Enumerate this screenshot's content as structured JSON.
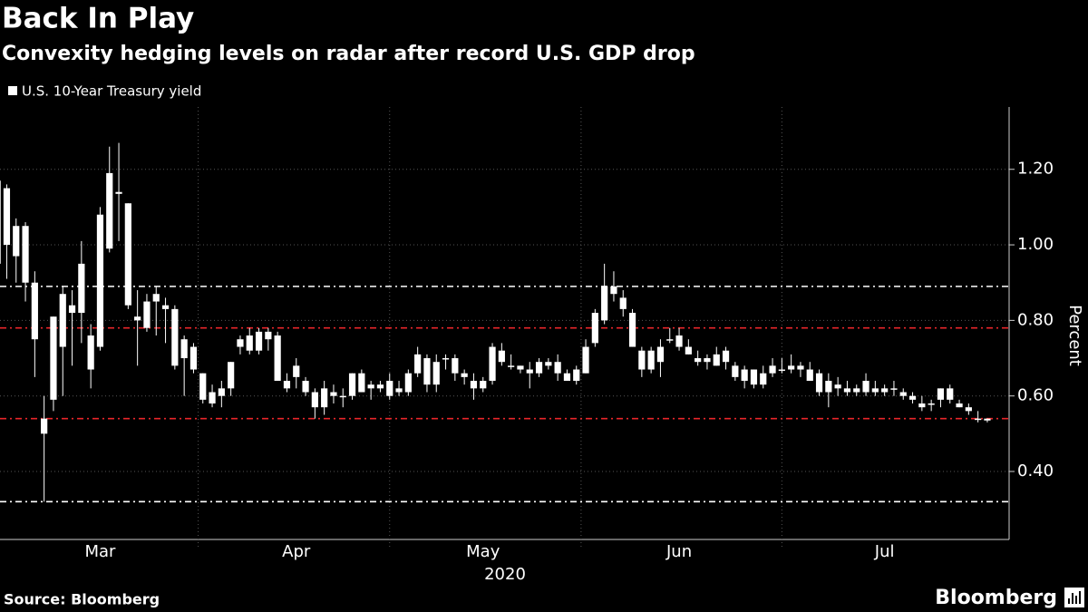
{
  "chart_data": {
    "type": "candlestick",
    "title": "Back In Play",
    "subtitle": "Convexity hedging levels on radar after record U.S. GDP drop",
    "ylabel": "Percent",
    "xlabel": "2020",
    "source": "Source: Bloomberg",
    "brand": "Bloomberg",
    "categories": [
      null,
      null,
      null,
      null,
      null,
      null,
      null,
      null,
      null,
      null,
      null,
      "Mar",
      null,
      null,
      null,
      null,
      null,
      null,
      null,
      null,
      null,
      null,
      null,
      null,
      null,
      null,
      null,
      null,
      null,
      null,
      null,
      null,
      "Apr",
      null,
      null,
      null,
      null,
      null,
      null,
      null,
      null,
      null,
      null,
      null,
      null,
      null,
      null,
      null,
      null,
      null,
      null,
      null,
      "May",
      null,
      null,
      null,
      null,
      null,
      null,
      null,
      null,
      null,
      null,
      null,
      null,
      null,
      null,
      null,
      null,
      null,
      null,
      null,
      null,
      "Jun",
      null,
      null,
      null,
      null,
      null,
      null,
      null,
      null,
      null,
      null,
      null,
      null,
      null,
      null,
      null,
      null,
      null,
      null,
      null,
      null,
      null,
      "Jul",
      null,
      null,
      null,
      null,
      null,
      null,
      null,
      null,
      null,
      null,
      null
    ],
    "series": [
      {
        "name": "U.S. 10-Year Treasury yield",
        "color": "#ffffff",
        "open": [
          1.17,
          1.15,
          1.05,
          1.05,
          0.9,
          0.5,
          0.59,
          0.73,
          0.82,
          0.82,
          0.67,
          0.73,
          0.99,
          1.14,
          1.11,
          0.81,
          0.78,
          0.85,
          0.84,
          0.83,
          0.7,
          0.67,
          0.66,
          0.61,
          0.62,
          0.62,
          0.73,
          0.76,
          0.72,
          0.77,
          0.76,
          0.64,
          0.68,
          0.64,
          0.61,
          0.57,
          0.61,
          0.6,
          0.6,
          0.66,
          0.62,
          0.63,
          0.64,
          0.62,
          0.61,
          0.66,
          0.7,
          0.63,
          0.7,
          0.7,
          0.66,
          0.64,
          0.62,
          0.64,
          0.72,
          0.68,
          0.68,
          0.67,
          0.66,
          0.69,
          0.69,
          0.66,
          0.64,
          0.66,
          0.74,
          0.8,
          0.89,
          0.86,
          0.82,
          0.72,
          0.67,
          0.69,
          0.75,
          0.76,
          0.73,
          0.7,
          0.69,
          0.71,
          0.72,
          0.68,
          0.64,
          0.67,
          0.63,
          0.66,
          0.67,
          0.67,
          0.68,
          0.67,
          0.66,
          0.64,
          0.62,
          0.62,
          0.62,
          0.61,
          0.62,
          0.62,
          0.62,
          0.61,
          0.6,
          0.58,
          0.58,
          0.59,
          0.62,
          0.58,
          0.57,
          0.54,
          0.54
        ],
        "high": [
          1.18,
          1.16,
          1.07,
          1.06,
          0.93,
          0.6,
          0.81,
          0.89,
          0.88,
          1.01,
          0.79,
          1.1,
          1.26,
          1.27,
          1.11,
          0.88,
          0.87,
          0.89,
          0.86,
          0.84,
          0.76,
          0.74,
          0.66,
          0.63,
          0.64,
          0.69,
          0.76,
          0.78,
          0.78,
          0.78,
          0.77,
          0.66,
          0.7,
          0.65,
          0.62,
          0.64,
          0.63,
          0.62,
          0.66,
          0.67,
          0.64,
          0.64,
          0.66,
          0.64,
          0.67,
          0.73,
          0.71,
          0.71,
          0.71,
          0.71,
          0.67,
          0.66,
          0.65,
          0.74,
          0.74,
          0.71,
          0.68,
          0.69,
          0.7,
          0.7,
          0.71,
          0.67,
          0.68,
          0.75,
          0.83,
          0.95,
          0.93,
          0.88,
          0.83,
          0.73,
          0.73,
          0.75,
          0.78,
          0.78,
          0.75,
          0.72,
          0.71,
          0.73,
          0.73,
          0.69,
          0.68,
          0.67,
          0.68,
          0.7,
          0.7,
          0.71,
          0.69,
          0.69,
          0.67,
          0.66,
          0.65,
          0.64,
          0.63,
          0.66,
          0.64,
          0.63,
          0.64,
          0.62,
          0.61,
          0.6,
          0.59,
          0.62,
          0.63,
          0.59,
          0.58,
          0.56,
          0.54
        ],
        "low": [
          0.92,
          0.91,
          0.9,
          0.85,
          0.65,
          0.32,
          0.56,
          0.6,
          0.68,
          0.74,
          0.62,
          0.72,
          0.98,
          1.01,
          0.83,
          0.68,
          0.77,
          0.76,
          0.74,
          0.67,
          0.6,
          0.66,
          0.58,
          0.57,
          0.57,
          0.6,
          0.71,
          0.71,
          0.71,
          0.72,
          0.64,
          0.61,
          0.62,
          0.6,
          0.54,
          0.55,
          0.58,
          0.57,
          0.59,
          0.61,
          0.59,
          0.61,
          0.59,
          0.6,
          0.6,
          0.65,
          0.61,
          0.61,
          0.67,
          0.64,
          0.63,
          0.59,
          0.61,
          0.63,
          0.68,
          0.67,
          0.66,
          0.62,
          0.65,
          0.67,
          0.64,
          0.64,
          0.63,
          0.66,
          0.73,
          0.79,
          0.85,
          0.81,
          0.73,
          0.65,
          0.66,
          0.65,
          0.74,
          0.72,
          0.71,
          0.68,
          0.67,
          0.68,
          0.67,
          0.64,
          0.62,
          0.62,
          0.62,
          0.65,
          0.66,
          0.66,
          0.65,
          0.64,
          0.6,
          0.57,
          0.6,
          0.6,
          0.6,
          0.6,
          0.6,
          0.6,
          0.6,
          0.59,
          0.58,
          0.56,
          0.56,
          0.57,
          0.58,
          0.57,
          0.55,
          0.53,
          0.53
        ],
        "close": [
          0.95,
          1.0,
          0.97,
          0.9,
          0.75,
          0.54,
          0.81,
          0.87,
          0.84,
          0.95,
          0.76,
          1.08,
          1.19,
          1.135,
          0.84,
          0.8,
          0.85,
          0.87,
          0.83,
          0.68,
          0.75,
          0.73,
          0.59,
          0.58,
          0.6,
          0.69,
          0.75,
          0.72,
          0.77,
          0.75,
          0.64,
          0.62,
          0.65,
          0.61,
          0.57,
          0.62,
          0.6,
          0.6,
          0.66,
          0.61,
          0.63,
          0.62,
          0.6,
          0.61,
          0.66,
          0.71,
          0.63,
          0.69,
          0.7,
          0.66,
          0.65,
          0.62,
          0.64,
          0.73,
          0.69,
          0.68,
          0.67,
          0.66,
          0.69,
          0.68,
          0.66,
          0.64,
          0.67,
          0.73,
          0.82,
          0.89,
          0.87,
          0.83,
          0.73,
          0.67,
          0.72,
          0.73,
          0.75,
          0.73,
          0.71,
          0.69,
          0.7,
          0.68,
          0.69,
          0.65,
          0.67,
          0.63,
          0.66,
          0.68,
          0.67,
          0.68,
          0.67,
          0.64,
          0.61,
          0.61,
          0.63,
          0.61,
          0.61,
          0.64,
          0.61,
          0.61,
          0.62,
          0.6,
          0.59,
          0.57,
          0.58,
          0.62,
          0.59,
          0.57,
          0.56,
          0.54,
          0.535
        ]
      }
    ],
    "ylim": [
      0.22,
      1.365
    ],
    "yticks": [
      {
        "value": 0.4,
        "label": "0.40"
      },
      {
        "value": 0.6,
        "label": "0.60"
      },
      {
        "value": 0.8,
        "label": "0.80"
      },
      {
        "value": 1.0,
        "label": "1.00"
      },
      {
        "value": 1.2,
        "label": "1.20"
      }
    ],
    "grid": true,
    "reference_lines": [
      {
        "value": 0.89,
        "color": "#ffffff"
      },
      {
        "value": 0.78,
        "color": "#e8262a"
      },
      {
        "value": 0.54,
        "color": "#e8262a"
      },
      {
        "value": 0.32,
        "color": "#ffffff"
      }
    ]
  }
}
